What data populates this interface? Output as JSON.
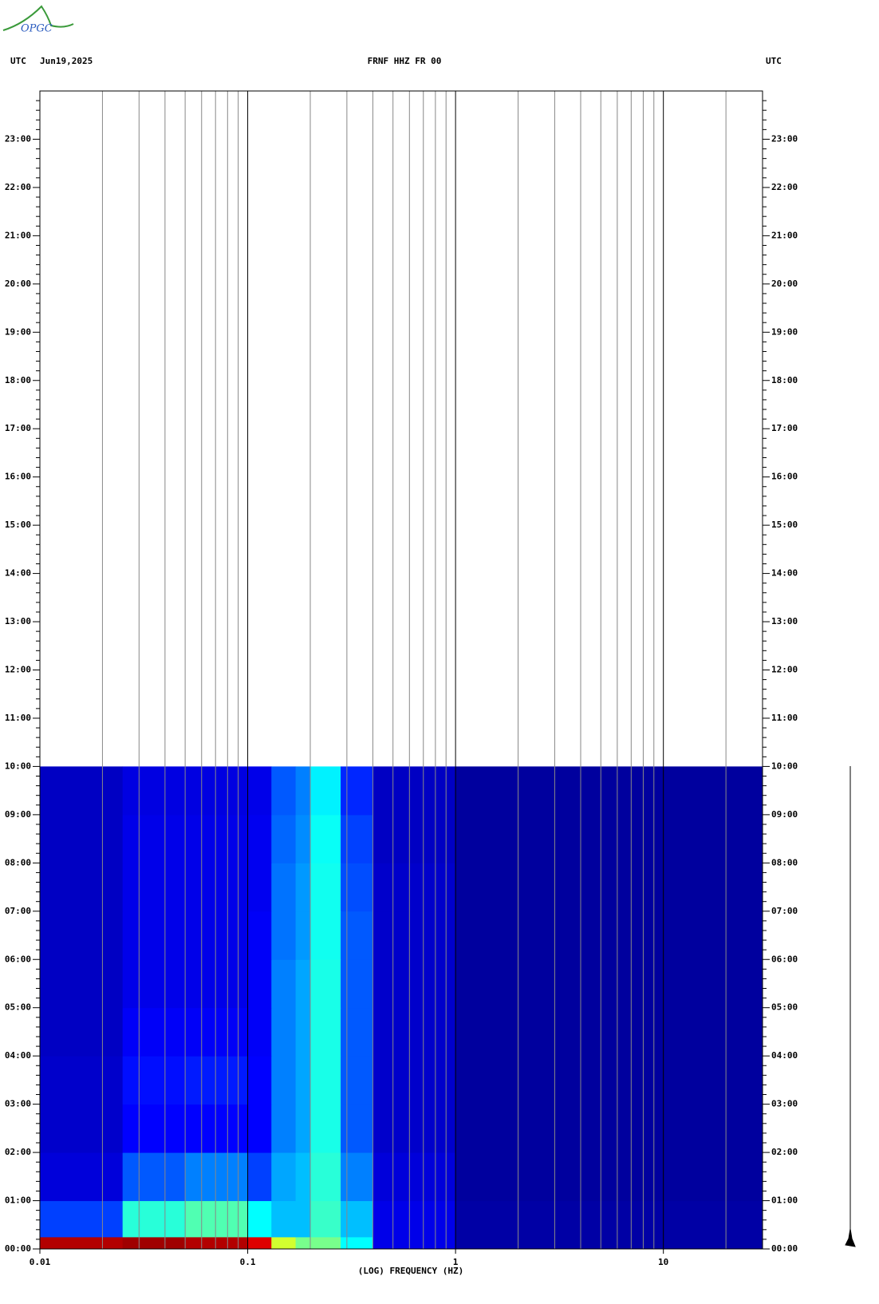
{
  "chart_data": {
    "type": "heatmap",
    "logo": "OPGC",
    "title": "FRNF HHZ FR 00",
    "date": "Jun19,2025",
    "left_label": "UTC",
    "right_label": "UTC",
    "xlabel": "(LOG) FREQUENCY (HZ)",
    "xscale": "log",
    "xlim": [
      0.01,
      30
    ],
    "xticks": [
      0.01,
      0.1,
      1,
      10
    ],
    "ylim": [
      0,
      24
    ],
    "yticks": [
      {
        "value": 0,
        "label": "00:00"
      },
      {
        "value": 1,
        "label": "01:00"
      },
      {
        "value": 2,
        "label": "02:00"
      },
      {
        "value": 3,
        "label": "03:00"
      },
      {
        "value": 4,
        "label": "04:00"
      },
      {
        "value": 5,
        "label": "05:00"
      },
      {
        "value": 6,
        "label": "06:00"
      },
      {
        "value": 7,
        "label": "07:00"
      },
      {
        "value": 8,
        "label": "08:00"
      },
      {
        "value": 9,
        "label": "09:00"
      },
      {
        "value": 10,
        "label": "10:00"
      },
      {
        "value": 11,
        "label": "11:00"
      },
      {
        "value": 12,
        "label": "12:00"
      },
      {
        "value": 13,
        "label": "13:00"
      },
      {
        "value": 14,
        "label": "14:00"
      },
      {
        "value": 15,
        "label": "15:00"
      },
      {
        "value": 16,
        "label": "16:00"
      },
      {
        "value": 17,
        "label": "17:00"
      },
      {
        "value": 18,
        "label": "18:00"
      },
      {
        "value": 19,
        "label": "19:00"
      },
      {
        "value": 20,
        "label": "20:00"
      },
      {
        "value": 21,
        "label": "21:00"
      },
      {
        "value": 22,
        "label": "22:00"
      },
      {
        "value": 23,
        "label": "23:00"
      }
    ],
    "colormap": "jet",
    "x_edges": [
      0.01,
      0.025,
      0.05,
      0.1,
      0.13,
      0.17,
      0.2,
      0.28,
      0.4,
      1,
      30
    ],
    "y_edges": [
      0,
      0.25,
      1,
      2,
      3,
      4,
      5,
      6,
      7,
      8,
      9,
      10
    ],
    "values": [
      [
        0.92,
        0.95,
        0.92,
        0.85,
        0.6,
        0.5,
        0.5,
        0.35,
        0.12,
        0.03
      ],
      [
        0.2,
        0.4,
        0.45,
        0.35,
        0.3,
        0.3,
        0.42,
        0.3,
        0.12,
        0.03
      ],
      [
        0.1,
        0.22,
        0.25,
        0.2,
        0.28,
        0.3,
        0.4,
        0.25,
        0.1,
        0.02
      ],
      [
        0.08,
        0.15,
        0.15,
        0.15,
        0.25,
        0.28,
        0.38,
        0.22,
        0.08,
        0.02
      ],
      [
        0.08,
        0.16,
        0.17,
        0.15,
        0.25,
        0.28,
        0.38,
        0.22,
        0.08,
        0.02
      ],
      [
        0.07,
        0.14,
        0.14,
        0.14,
        0.25,
        0.28,
        0.38,
        0.22,
        0.08,
        0.02
      ],
      [
        0.07,
        0.12,
        0.12,
        0.14,
        0.25,
        0.28,
        0.38,
        0.22,
        0.08,
        0.02
      ],
      [
        0.07,
        0.12,
        0.12,
        0.14,
        0.24,
        0.27,
        0.37,
        0.22,
        0.08,
        0.02
      ],
      [
        0.07,
        0.12,
        0.12,
        0.13,
        0.24,
        0.27,
        0.37,
        0.21,
        0.08,
        0.02
      ],
      [
        0.07,
        0.12,
        0.12,
        0.13,
        0.23,
        0.26,
        0.36,
        0.2,
        0.07,
        0.02
      ],
      [
        0.07,
        0.11,
        0.11,
        0.12,
        0.22,
        0.25,
        0.34,
        0.18,
        0.07,
        0.02
      ]
    ],
    "grid": true
  }
}
